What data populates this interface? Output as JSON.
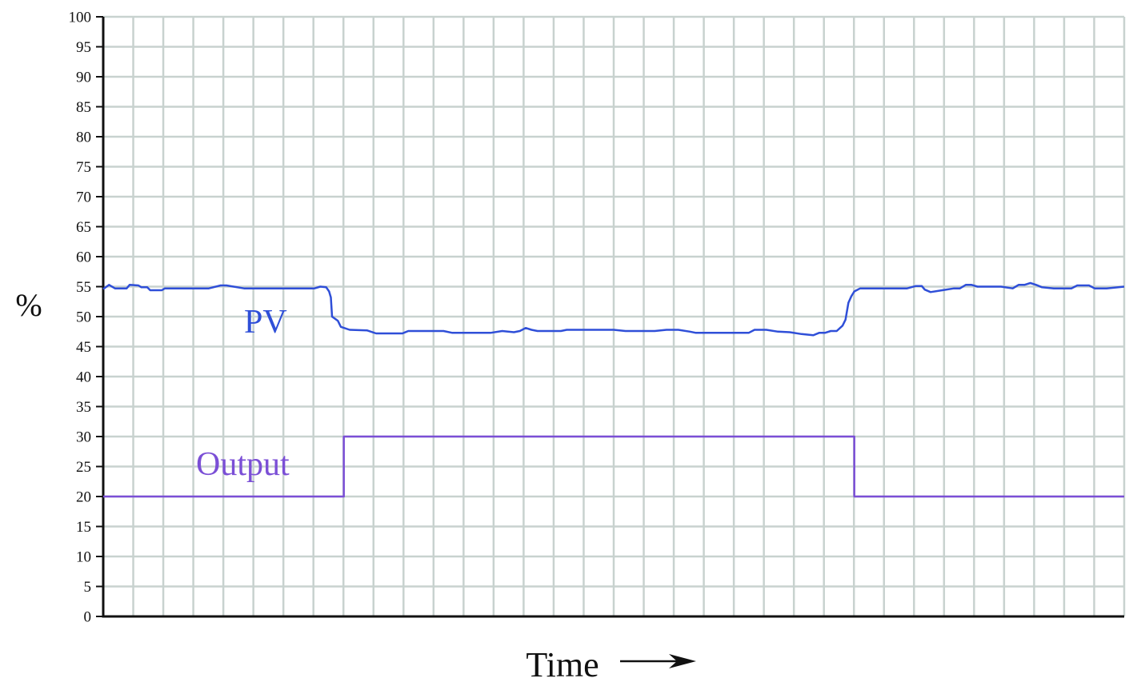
{
  "chart_data": {
    "type": "line",
    "title": "",
    "ylabel": "%",
    "xlabel": "Time",
    "ylim": [
      0,
      100
    ],
    "yticks": [
      0,
      5,
      10,
      15,
      20,
      25,
      30,
      35,
      40,
      45,
      50,
      55,
      60,
      65,
      70,
      75,
      80,
      85,
      90,
      95,
      100
    ],
    "grid": true,
    "x_ticks_labeled": false,
    "arrow_icon": "right-arrow-icon",
    "colors": {
      "grid": "#c8d2cf",
      "axis": "#111111",
      "pv": "#2f4fd8",
      "output": "#7b4fd6"
    },
    "series": [
      {
        "name": "PV",
        "points": [
          [
            0,
            54.6
          ],
          [
            1,
            55.3
          ],
          [
            2,
            54.7
          ],
          [
            3,
            54.7
          ],
          [
            4,
            54.7
          ],
          [
            4.5,
            55.3
          ],
          [
            6,
            55.2
          ],
          [
            6.5,
            54.9
          ],
          [
            7.5,
            54.9
          ],
          [
            8,
            54.4
          ],
          [
            9,
            54.4
          ],
          [
            10,
            54.4
          ],
          [
            10.5,
            54.7
          ],
          [
            18,
            54.7
          ],
          [
            20,
            55.2
          ],
          [
            21,
            55.2
          ],
          [
            24,
            54.7
          ],
          [
            36,
            54.7
          ],
          [
            37,
            55.0
          ],
          [
            38,
            54.9
          ],
          [
            38.5,
            54.2
          ],
          [
            38.8,
            53.2
          ],
          [
            39,
            50.0
          ],
          [
            40,
            49.3
          ],
          [
            40.5,
            48.3
          ],
          [
            42,
            47.8
          ],
          [
            45,
            47.7
          ],
          [
            46.5,
            47.2
          ],
          [
            51,
            47.2
          ],
          [
            52,
            47.6
          ],
          [
            58,
            47.6
          ],
          [
            59.5,
            47.3
          ],
          [
            66,
            47.3
          ],
          [
            68,
            47.6
          ],
          [
            70,
            47.4
          ],
          [
            71,
            47.6
          ],
          [
            72,
            48.1
          ],
          [
            73,
            47.8
          ],
          [
            74,
            47.6
          ],
          [
            78,
            47.6
          ],
          [
            79,
            47.8
          ],
          [
            87,
            47.8
          ],
          [
            89,
            47.6
          ],
          [
            94,
            47.6
          ],
          [
            96,
            47.8
          ],
          [
            98,
            47.8
          ],
          [
            100,
            47.5
          ],
          [
            101,
            47.3
          ],
          [
            110,
            47.3
          ],
          [
            111,
            47.8
          ],
          [
            113,
            47.8
          ],
          [
            115,
            47.5
          ],
          [
            117,
            47.4
          ],
          [
            119,
            47.1
          ],
          [
            121,
            46.9
          ],
          [
            122,
            47.3
          ],
          [
            123,
            47.3
          ],
          [
            124,
            47.6
          ],
          [
            125,
            47.6
          ],
          [
            126,
            48.5
          ],
          [
            126.5,
            49.5
          ],
          [
            127,
            52.3
          ],
          [
            127.5,
            53.4
          ],
          [
            128,
            54.2
          ],
          [
            129,
            54.7
          ],
          [
            137,
            54.7
          ],
          [
            138.5,
            55.1
          ],
          [
            139.5,
            55.1
          ],
          [
            140,
            54.5
          ],
          [
            141,
            54.1
          ],
          [
            143,
            54.4
          ],
          [
            145,
            54.7
          ],
          [
            146,
            54.7
          ],
          [
            147,
            55.3
          ],
          [
            148,
            55.3
          ],
          [
            149,
            55.0
          ],
          [
            153,
            55.0
          ],
          [
            155,
            54.7
          ],
          [
            156,
            55.3
          ],
          [
            157,
            55.3
          ],
          [
            158,
            55.6
          ],
          [
            159,
            55.3
          ],
          [
            160,
            54.9
          ],
          [
            162,
            54.7
          ],
          [
            165,
            54.7
          ],
          [
            166,
            55.2
          ],
          [
            168,
            55.2
          ],
          [
            169,
            54.7
          ],
          [
            171,
            54.7
          ],
          [
            173,
            54.9
          ],
          [
            174,
            55.0
          ]
        ]
      },
      {
        "name": "Output",
        "points": [
          [
            0,
            20
          ],
          [
            41,
            20
          ],
          [
            41,
            30
          ],
          [
            128,
            30
          ],
          [
            128,
            20
          ],
          [
            174,
            20
          ]
        ]
      }
    ]
  },
  "series_labels": {
    "pv": "PV",
    "output": "Output"
  }
}
